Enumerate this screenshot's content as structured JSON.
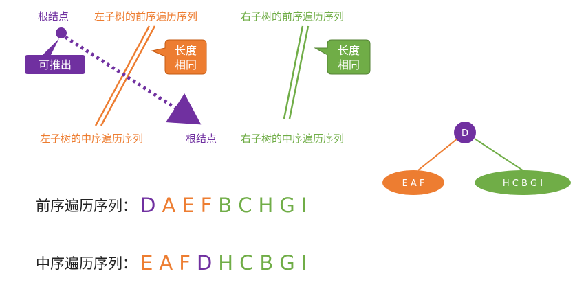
{
  "colors": {
    "root": "#7030a0",
    "left": "#ed7d31",
    "right": "#70ad47",
    "text": "#222222"
  },
  "labels": {
    "root_top": "根结点",
    "left_preorder": "左子树的前序遍历序列",
    "right_preorder": "右子树的前序遍历序列",
    "left_inorder": "左子树的中序遍历序列",
    "root_bottom": "根结点",
    "right_inorder": "右子树的中序遍历序列",
    "can_deduce": "可推出",
    "same_length_left": [
      "长度",
      "相同"
    ],
    "same_length_right": [
      "长度",
      "相同"
    ]
  },
  "tree": {
    "root": "D",
    "left": "E A F",
    "right": "H C B G I"
  },
  "sequences": {
    "preorder": {
      "label": "前序遍历序列：",
      "letters": [
        {
          "ch": "D",
          "group": "root"
        },
        {
          "ch": "A",
          "group": "left"
        },
        {
          "ch": "E",
          "group": "left"
        },
        {
          "ch": "F",
          "group": "left"
        },
        {
          "ch": "B",
          "group": "right"
        },
        {
          "ch": "C",
          "group": "right"
        },
        {
          "ch": "H",
          "group": "right"
        },
        {
          "ch": "G",
          "group": "right"
        },
        {
          "ch": "I",
          "group": "right"
        }
      ]
    },
    "inorder": {
      "label": "中序遍历序列：",
      "letters": [
        {
          "ch": "E",
          "group": "left"
        },
        {
          "ch": "A",
          "group": "left"
        },
        {
          "ch": "F",
          "group": "left"
        },
        {
          "ch": "D",
          "group": "root"
        },
        {
          "ch": "H",
          "group": "right"
        },
        {
          "ch": "C",
          "group": "right"
        },
        {
          "ch": "B",
          "group": "right"
        },
        {
          "ch": "G",
          "group": "right"
        },
        {
          "ch": "I",
          "group": "right"
        }
      ]
    }
  }
}
